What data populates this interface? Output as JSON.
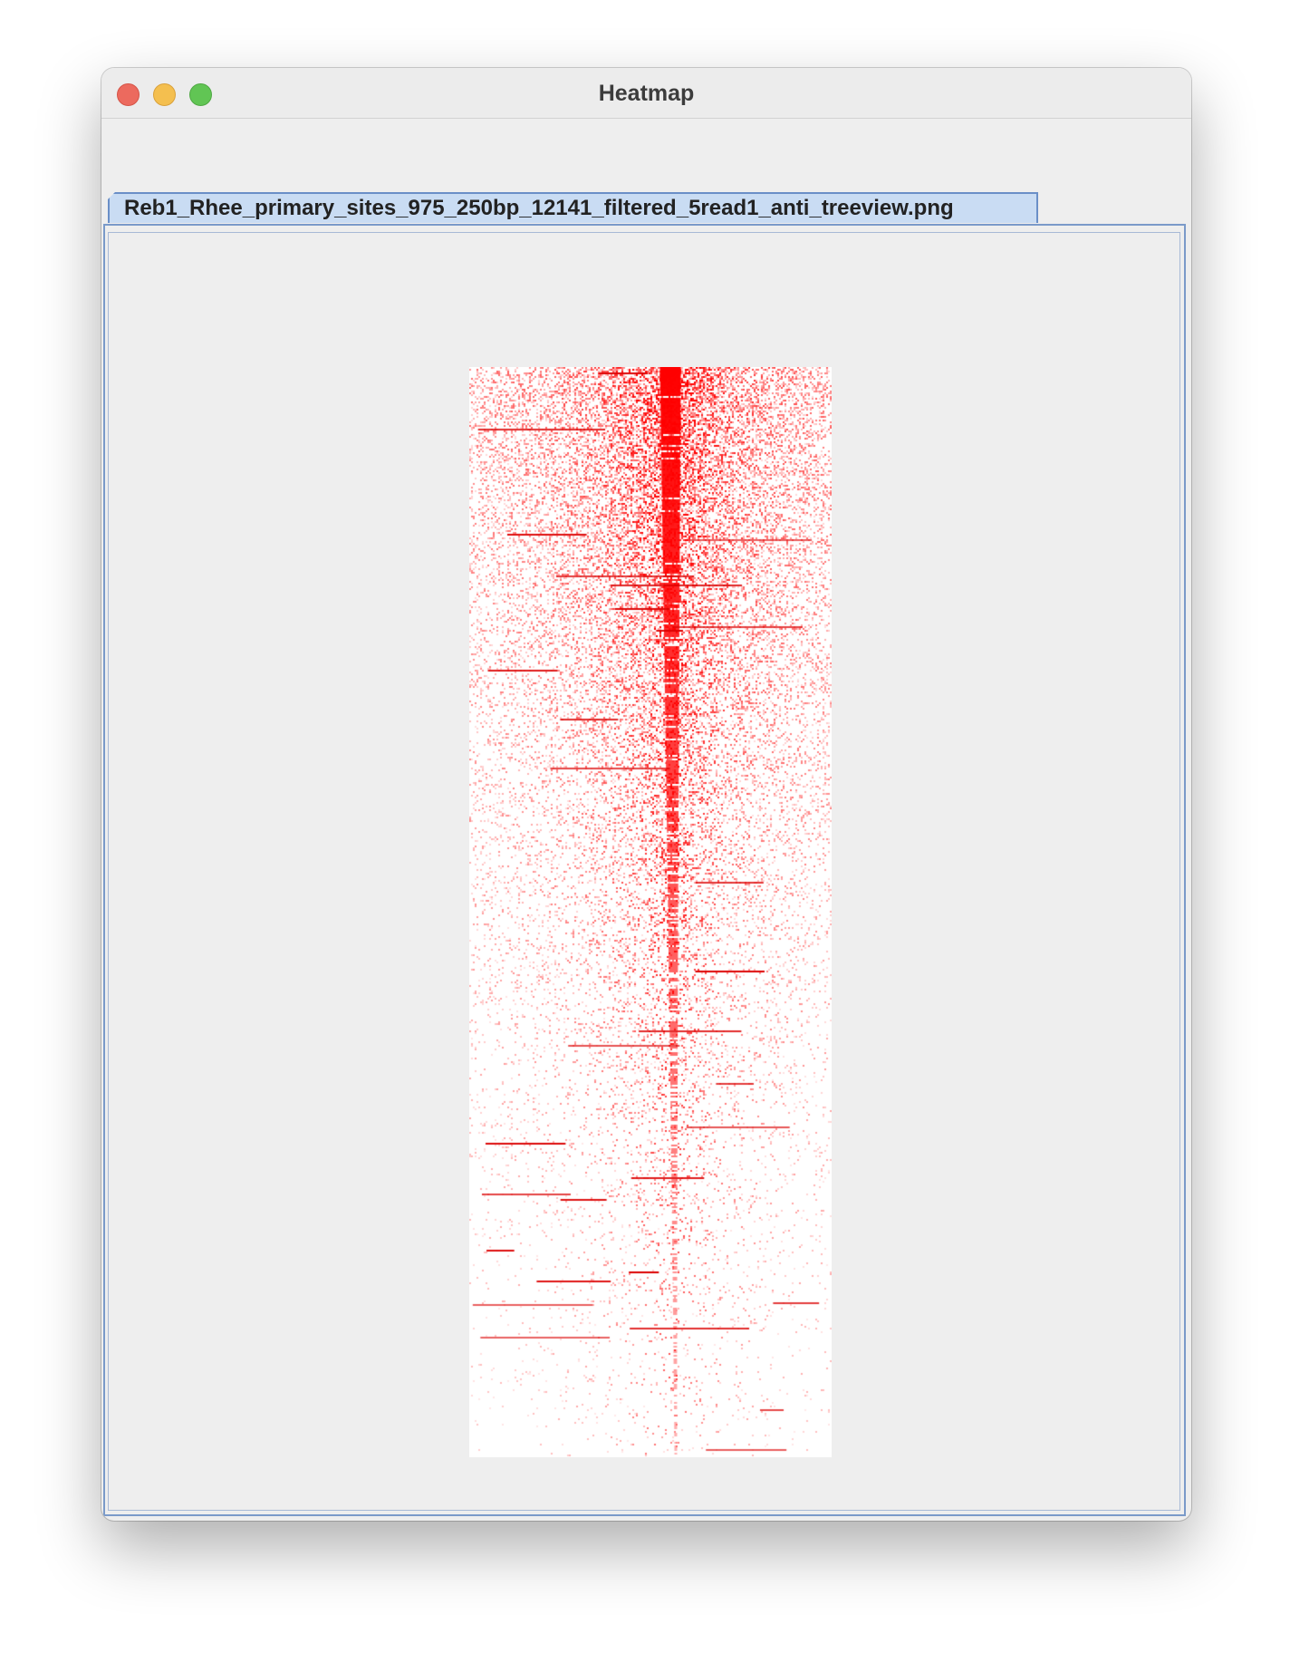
{
  "window": {
    "title": "Heatmap",
    "controls": {
      "close_icon": "close-icon",
      "minimize_icon": "minimize-icon",
      "zoom_icon": "zoom-icon",
      "close_color": "#ec6a5e",
      "minimize_color": "#f4bf4f",
      "zoom_color": "#61c554"
    }
  },
  "tabs": [
    {
      "label": "Reb1_Rhee_primary_sites_975_250bp_12141_filtered_5read1_anti_treeview.png",
      "selected": true
    }
  ],
  "heatmap": {
    "color_high": "#ff0000",
    "color_low": "#ffffff"
  }
}
